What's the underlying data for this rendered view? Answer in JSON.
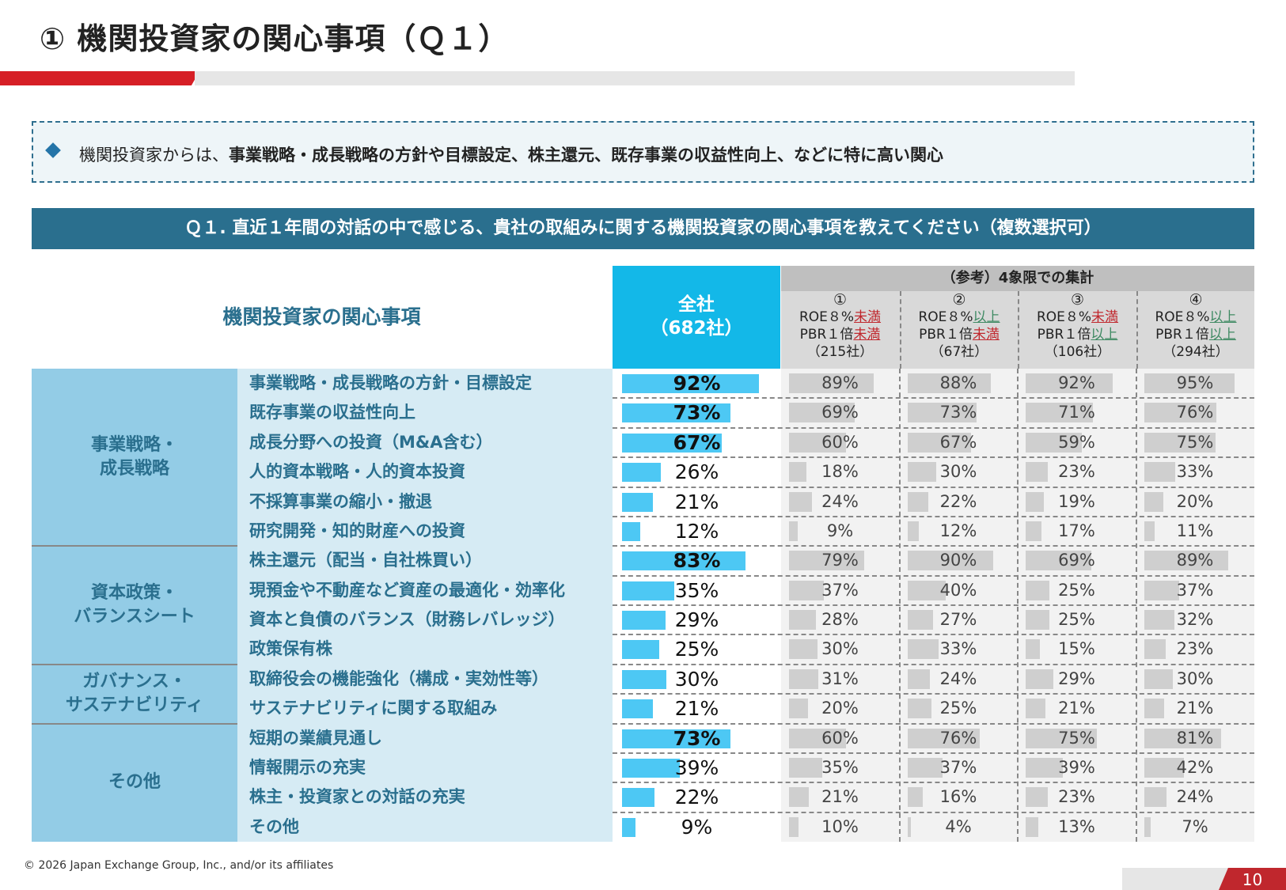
{
  "title": "① 機関投資家の関心事項（Ｑ１）",
  "summary": {
    "prefix": "機関投資家からは、",
    "bold": "事業戦略・成長戦略の方針や目標設定、株主還元、既存事業の収益性向上、などに特に高い関心"
  },
  "question": "Ｑ１. 直近１年間の対話の中で感じる、貴社の取組みに関する機関投資家の関心事項を教えてください（複数選択可）",
  "header": {
    "main": "機関投資家の関心事項",
    "all_line1": "全社",
    "all_line2": "（682社）",
    "ref_title": "（参考）4象限での集計",
    "quadrants": [
      {
        "num": "①",
        "roe_prefix": "ROE８%",
        "roe_cond": "未満",
        "roe_color": "red",
        "pbr_prefix": "PBR１倍",
        "pbr_cond": "未満",
        "pbr_color": "red",
        "count": "（215社）"
      },
      {
        "num": "②",
        "roe_prefix": "ROE８%",
        "roe_cond": "以上",
        "roe_color": "green",
        "pbr_prefix": "PBR１倍",
        "pbr_cond": "未満",
        "pbr_color": "red",
        "count": "（67社）"
      },
      {
        "num": "③",
        "roe_prefix": "ROE８%",
        "roe_cond": "未満",
        "roe_color": "red",
        "pbr_prefix": "PBR１倍",
        "pbr_cond": "以上",
        "pbr_color": "green",
        "count": "（106社）"
      },
      {
        "num": "④",
        "roe_prefix": "ROE８%",
        "roe_cond": "以上",
        "roe_color": "green",
        "pbr_prefix": "PBR１倍",
        "pbr_cond": "以上",
        "pbr_color": "green",
        "count": "（294社）"
      }
    ]
  },
  "categories": [
    {
      "label": "事業戦略・\n成長戦略",
      "rows": 6
    },
    {
      "label": "資本政策・\nバランスシート",
      "rows": 4
    },
    {
      "label": "ガバナンス・\nサステナビリティ",
      "rows": 2
    },
    {
      "label": "その他",
      "rows": 4
    }
  ],
  "rows": [
    {
      "label": "事業戦略・成長戦略の方針・目標設定",
      "all": 92,
      "all_text": "92%",
      "bold": true,
      "q": [
        89,
        88,
        92,
        95
      ],
      "q_text": [
        "89%",
        "88%",
        "92%",
        "95%"
      ]
    },
    {
      "label": "既存事業の収益性向上",
      "all": 73,
      "all_text": "73%",
      "bold": true,
      "q": [
        69,
        73,
        71,
        76
      ],
      "q_text": [
        "69%",
        "73%",
        "71%",
        "76%"
      ]
    },
    {
      "label": "成長分野への投資（M&A含む）",
      "all": 67,
      "all_text": "67%",
      "bold": true,
      "q": [
        60,
        67,
        59,
        75
      ],
      "q_text": [
        "60%",
        "67%",
        "59%",
        "75%"
      ]
    },
    {
      "label": "人的資本戦略・人的資本投資",
      "all": 26,
      "all_text": "26%",
      "bold": false,
      "q": [
        18,
        30,
        23,
        33
      ],
      "q_text": [
        "18%",
        "30%",
        "23%",
        "33%"
      ]
    },
    {
      "label": "不採算事業の縮小・撤退",
      "all": 21,
      "all_text": "21%",
      "bold": false,
      "q": [
        24,
        22,
        19,
        20
      ],
      "q_text": [
        "24%",
        "22%",
        "19%",
        "20%"
      ]
    },
    {
      "label": "研究開発・知的財産への投資",
      "all": 12,
      "all_text": "12%",
      "bold": false,
      "q": [
        9,
        12,
        17,
        11
      ],
      "q_text": [
        "9%",
        "12%",
        "17%",
        "11%"
      ]
    },
    {
      "label": "株主還元（配当・自社株買い）",
      "all": 83,
      "all_text": "83%",
      "bold": true,
      "q": [
        79,
        90,
        69,
        89
      ],
      "q_text": [
        "79%",
        "90%",
        "69%",
        "89%"
      ]
    },
    {
      "label": "現預金や不動産など資産の最適化・効率化",
      "all": 35,
      "all_text": "35%",
      "bold": false,
      "q": [
        37,
        40,
        25,
        37
      ],
      "q_text": [
        "37%",
        "40%",
        "25%",
        "37%"
      ]
    },
    {
      "label": "資本と負債のバランス（財務レバレッジ）",
      "all": 29,
      "all_text": "29%",
      "bold": false,
      "q": [
        28,
        27,
        25,
        32
      ],
      "q_text": [
        "28%",
        "27%",
        "25%",
        "32%"
      ]
    },
    {
      "label": "政策保有株",
      "all": 25,
      "all_text": "25%",
      "bold": false,
      "q": [
        30,
        33,
        15,
        23
      ],
      "q_text": [
        "30%",
        "33%",
        "15%",
        "23%"
      ]
    },
    {
      "label": "取締役会の機能強化（構成・実効性等）",
      "all": 30,
      "all_text": "30%",
      "bold": false,
      "q": [
        31,
        24,
        29,
        30
      ],
      "q_text": [
        "31%",
        "24%",
        "29%",
        "30%"
      ]
    },
    {
      "label": "サステナビリティに関する取組み",
      "all": 21,
      "all_text": "21%",
      "bold": false,
      "q": [
        20,
        25,
        21,
        21
      ],
      "q_text": [
        "20%",
        "25%",
        "21%",
        "21%"
      ]
    },
    {
      "label": "短期の業績見通し",
      "all": 73,
      "all_text": "73%",
      "bold": true,
      "q": [
        60,
        76,
        75,
        81
      ],
      "q_text": [
        "60%",
        "76%",
        "75%",
        "81%"
      ]
    },
    {
      "label": "情報開示の充実",
      "all": 39,
      "all_text": "39%",
      "bold": false,
      "q": [
        35,
        37,
        39,
        42
      ],
      "q_text": [
        "35%",
        "37%",
        "39%",
        "42%"
      ]
    },
    {
      "label": "株主・投資家との対話の充実",
      "all": 22,
      "all_text": "22%",
      "bold": false,
      "q": [
        21,
        16,
        23,
        24
      ],
      "q_text": [
        "21%",
        "16%",
        "23%",
        "24%"
      ]
    },
    {
      "label": "その他",
      "all": 9,
      "all_text": "9%",
      "bold": false,
      "q": [
        10,
        4,
        13,
        7
      ],
      "q_text": [
        "10%",
        "4%",
        "13%",
        "7%"
      ]
    }
  ],
  "colors": {
    "all_bar": "#4dc8f4",
    "quadrant_bar": "#cfcfcf",
    "accent_red": "#c0272d",
    "accent_green": "#3f8a63",
    "header_blue": "#2a6f8e"
  },
  "footer": "© 2026 Japan Exchange Group, Inc., and/or its affiliates",
  "page_number": "10"
}
